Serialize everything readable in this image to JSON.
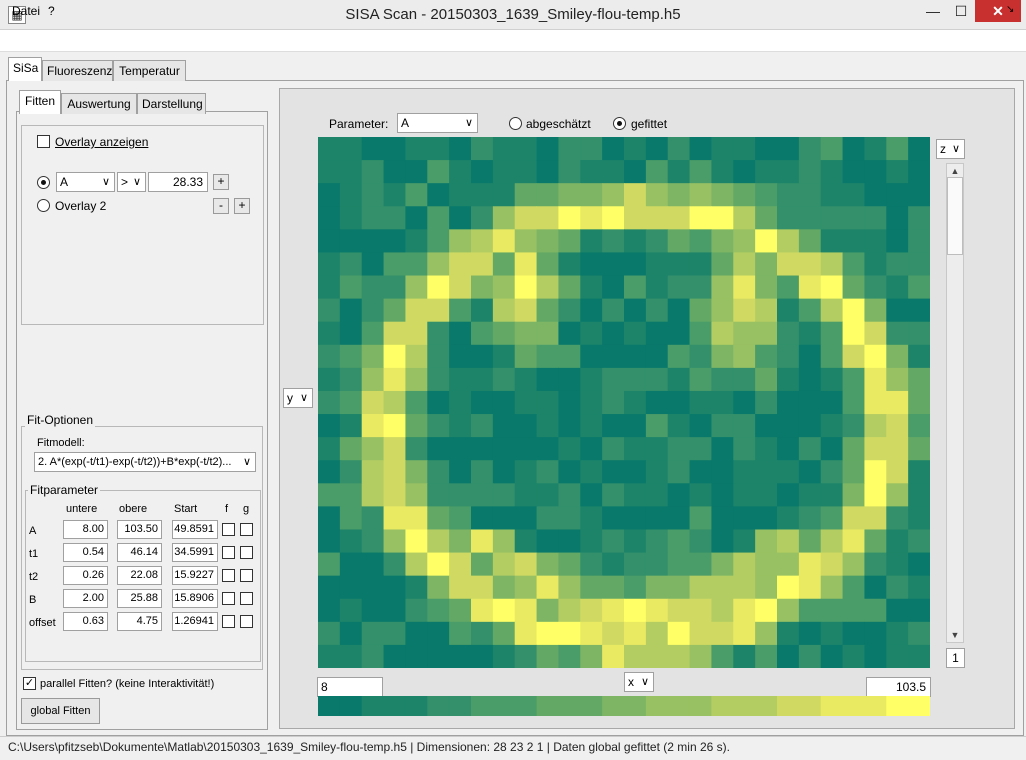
{
  "window": {
    "title": "SISA Scan - 20150303_1639_Smiley-flou-temp.h5",
    "minimize": "—",
    "maximize": "☐",
    "close": "✕",
    "icon": "sisa-app-icon"
  },
  "menu": {
    "datei": "Datei",
    "help": "?",
    "corner": "↘"
  },
  "tabs": {
    "sisa": "SiSa",
    "fluoreszenz": "Fluoreszenz",
    "temperatur": "Temperatur"
  },
  "subtabs": {
    "fitten": "Fitten",
    "auswertung": "Auswertung",
    "darstellung": "Darstellung"
  },
  "overlay": {
    "show_label": "Overlay anzeigen",
    "param_value": "A",
    "operator_value": ">",
    "threshold": "28.33",
    "overlay2_label": "Overlay 2",
    "plus": "+",
    "minus": "-"
  },
  "fitoptions": {
    "title": "Fit-Optionen",
    "model_label": "Fitmodell:",
    "model_value": "2. A*(exp(-t/t1)-exp(-t/t2))+B*exp(-t/t2)...",
    "params_title": "Fitparameter",
    "headers": {
      "lower": "untere",
      "upper": "obere",
      "start": "Start",
      "f": "f",
      "g": "g"
    },
    "rows": [
      {
        "name": "A",
        "lower": "8.00",
        "upper": "103.50",
        "start": "49.8591"
      },
      {
        "name": "t1",
        "lower": "0.54",
        "upper": "46.14",
        "start": "34.5991"
      },
      {
        "name": "t2",
        "lower": "0.26",
        "upper": "22.08",
        "start": "15.9227"
      },
      {
        "name": "B",
        "lower": "2.00",
        "upper": "25.88",
        "start": "15.8906"
      },
      {
        "name": "offset",
        "lower": "0.63",
        "upper": "4.75",
        "start": "1.26941"
      }
    ],
    "parallel_label": "parallel Fitten? (keine Interaktivität!)",
    "global_button": "global Fitten"
  },
  "plot": {
    "parameter_label": "Parameter:",
    "parameter_value": "A",
    "radio_estimated": "abgeschätzt",
    "radio_fitted": "gefittet",
    "y_axis_select": "y",
    "x_axis_select": "x",
    "z_axis_select": "z",
    "slice_value": "1",
    "range_min": "8",
    "range_max": "103.5",
    "colorbar_start": "#0a7a6a",
    "colorbar_end": "#ffff66",
    "heatmap": {
      "cols": 28,
      "rows": 23,
      "min": 8,
      "max": 103.5,
      "colors": [
        "#09796b",
        "#1d8469",
        "#33906a",
        "#4a9c68",
        "#63a965",
        "#7db565",
        "#98c163",
        "#b4cd62",
        "#d0da62",
        "#eaea62",
        "#ffff66"
      ]
    }
  },
  "status": {
    "text": "C:\\Users\\pfitzseb\\Dokumente\\Matlab\\20150303_1639_Smiley-flou-temp.h5  |  Dimensionen: 28  23  2  1  |  Daten global gefittet (2 min 26 s)."
  }
}
